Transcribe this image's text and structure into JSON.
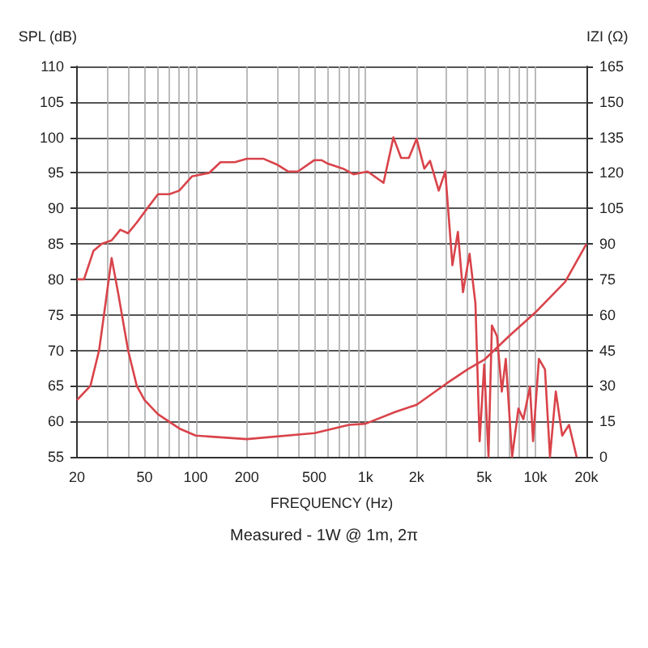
{
  "chart_data": {
    "type": "line",
    "ylabel": "SPL (dB)",
    "y2label": "IZI (Ω)",
    "xlabel": "FREQUENCY (Hz)",
    "annotations": [
      "Measured - 1W @ 1m, 2π"
    ],
    "log": "x",
    "grid": true,
    "marker": "none",
    "line_style": "solid",
    "xlim": [
      20,
      20000
    ],
    "xticks": [
      {
        "value": 20,
        "label": "20"
      },
      {
        "value": 30,
        "label": null
      },
      {
        "value": 40,
        "label": null
      },
      {
        "value": 50,
        "label": "50"
      },
      {
        "value": 60,
        "label": null
      },
      {
        "value": 70,
        "label": null
      },
      {
        "value": 80,
        "label": null
      },
      {
        "value": 90,
        "label": null
      },
      {
        "value": 100,
        "label": "100"
      },
      {
        "value": 200,
        "label": "200"
      },
      {
        "value": 300,
        "label": null
      },
      {
        "value": 400,
        "label": null
      },
      {
        "value": 500,
        "label": "500"
      },
      {
        "value": 600,
        "label": null
      },
      {
        "value": 700,
        "label": null
      },
      {
        "value": 800,
        "label": null
      },
      {
        "value": 900,
        "label": null
      },
      {
        "value": 1000,
        "label": "1k"
      },
      {
        "value": 2000,
        "label": "2k"
      },
      {
        "value": 3000,
        "label": null
      },
      {
        "value": 4000,
        "label": null
      },
      {
        "value": 5000,
        "label": "5k"
      },
      {
        "value": 6000,
        "label": null
      },
      {
        "value": 7000,
        "label": null
      },
      {
        "value": 8000,
        "label": null
      },
      {
        "value": 9000,
        "label": null
      },
      {
        "value": 10000,
        "label": "10k"
      },
      {
        "value": 20000,
        "label": "20k"
      }
    ],
    "ylim": [
      55,
      110
    ],
    "yticks": [
      55,
      60,
      65,
      70,
      75,
      80,
      85,
      90,
      95,
      100,
      105,
      110
    ],
    "y2lim": [
      0,
      165
    ],
    "y2ticks": [
      0,
      15,
      30,
      45,
      60,
      75,
      90,
      105,
      120,
      135,
      150,
      165
    ],
    "series": [
      {
        "color": "#d9434a",
        "x": [
          20,
          22,
          25,
          28,
          32,
          36,
          40,
          45,
          50,
          60,
          70,
          80,
          95,
          120,
          140,
          170,
          200,
          250,
          300,
          350,
          400,
          500,
          550,
          600,
          737,
          850,
          1030,
          1277,
          1460,
          1620,
          1800,
          2000,
          2220,
          2400,
          2700,
          2950,
          3250,
          3500,
          3750,
          4100,
          4440,
          4700,
          5000,
          5300,
          5550,
          5950,
          6350,
          6700,
          7300,
          7950,
          8500,
          9300,
          9700,
          10500,
          11400,
          12200,
          13200,
          14400,
          15800,
          17500
        ],
        "values": [
          80,
          80,
          84,
          85,
          85.5,
          87,
          86.5,
          88,
          89.5,
          92,
          92,
          92.5,
          94.5,
          95,
          96.5,
          96.5,
          97,
          97,
          96.2,
          95.2,
          95.2,
          96.8,
          96.8,
          96.3,
          95.6,
          94.8,
          95.2,
          93.6,
          100,
          97.1,
          97.1,
          99.8,
          95.6,
          96.7,
          92.5,
          95.2,
          82,
          86.7,
          78.2,
          83.6,
          76.6,
          57.2,
          68,
          55,
          73.5,
          72,
          64.2,
          68.8,
          55,
          61.8,
          60.3,
          64.9,
          57.2,
          68.8,
          67.3,
          55,
          64.2,
          58,
          59.5,
          55
        ]
      },
      {
        "color": "#d9434a",
        "axis": "y2",
        "x": [
          20,
          24,
          27,
          30,
          32,
          35,
          40,
          45,
          50,
          60,
          80,
          100,
          200,
          500,
          800,
          1000,
          1500,
          2000,
          3000,
          4000,
          5000,
          7000,
          10000,
          15000,
          20000
        ],
        "values": [
          24,
          30,
          45,
          69,
          84,
          69,
          45,
          30,
          24,
          18,
          12,
          9,
          7.5,
          10,
          13.5,
          14,
          19,
          22,
          31,
          37,
          41,
          51,
          61,
          74,
          90
        ]
      }
    ]
  }
}
